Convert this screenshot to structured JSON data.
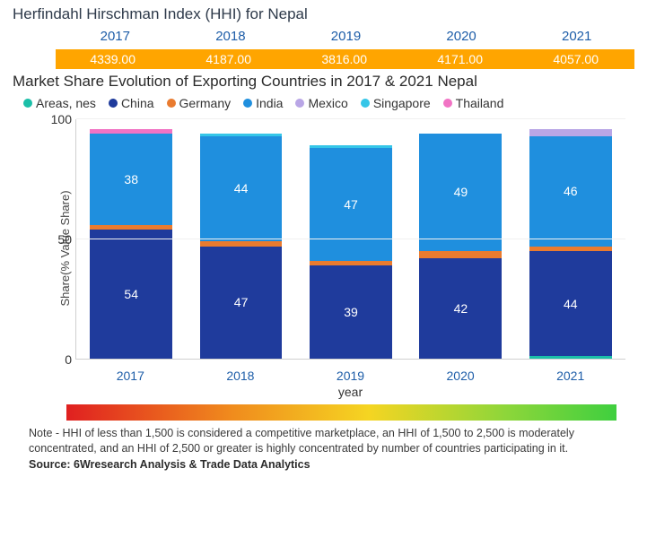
{
  "hhi": {
    "title": "Herfindahl Hirschman Index (HHI) for Nepal",
    "years": [
      "2017",
      "2018",
      "2019",
      "2020",
      "2021"
    ],
    "values": [
      "4339.00",
      "4187.00",
      "3816.00",
      "4171.00",
      "4057.00"
    ],
    "bar_color": "#ffa500",
    "year_color": "#1d5da8"
  },
  "marketShare": {
    "title": "Market Share Evolution of Exporting Countries in 2017 & 2021 Nepal",
    "legend": [
      {
        "label": "Areas, nes",
        "color": "#1bbfa8"
      },
      {
        "label": "China",
        "color": "#1f3b9c"
      },
      {
        "label": "Germany",
        "color": "#e97b2f"
      },
      {
        "label": "India",
        "color": "#1f8fde"
      },
      {
        "label": "Mexico",
        "color": "#b9a6e6"
      },
      {
        "label": "Singapore",
        "color": "#35c6e8"
      },
      {
        "label": "Thailand",
        "color": "#f173c4"
      }
    ],
    "ylabel": "Share(% Value Share)",
    "ylim": [
      0,
      100
    ],
    "yticks": [
      0,
      50,
      100
    ],
    "xlabel": "year",
    "categories": [
      "2017",
      "2018",
      "2019",
      "2020",
      "2021"
    ],
    "stacks": [
      [
        {
          "name": "China",
          "value": 54,
          "color": "#1f3b9c",
          "label": "54"
        },
        {
          "name": "Germany",
          "value": 2,
          "color": "#e97b2f",
          "label": ""
        },
        {
          "name": "India",
          "value": 38,
          "color": "#1f8fde",
          "label": "38"
        },
        {
          "name": "Thailand",
          "value": 2,
          "color": "#f173c4",
          "label": ""
        }
      ],
      [
        {
          "name": "China",
          "value": 47,
          "color": "#1f3b9c",
          "label": "47"
        },
        {
          "name": "Germany",
          "value": 2,
          "color": "#e97b2f",
          "label": ""
        },
        {
          "name": "India",
          "value": 44,
          "color": "#1f8fde",
          "label": "44"
        },
        {
          "name": "Singapore",
          "value": 1,
          "color": "#35c6e8",
          "label": ""
        }
      ],
      [
        {
          "name": "China",
          "value": 39,
          "color": "#1f3b9c",
          "label": "39"
        },
        {
          "name": "Germany",
          "value": 2,
          "color": "#e97b2f",
          "label": ""
        },
        {
          "name": "India",
          "value": 47,
          "color": "#1f8fde",
          "label": "47"
        },
        {
          "name": "Singapore",
          "value": 1,
          "color": "#35c6e8",
          "label": ""
        }
      ],
      [
        {
          "name": "China",
          "value": 42,
          "color": "#1f3b9c",
          "label": "42"
        },
        {
          "name": "Germany",
          "value": 3,
          "color": "#e97b2f",
          "label": ""
        },
        {
          "name": "India",
          "value": 49,
          "color": "#1f8fde",
          "label": "49"
        }
      ],
      [
        {
          "name": "Areas, nes",
          "value": 1,
          "color": "#1bbfa8",
          "label": ""
        },
        {
          "name": "China",
          "value": 44,
          "color": "#1f3b9c",
          "label": "44"
        },
        {
          "name": "Germany",
          "value": 2,
          "color": "#e97b2f",
          "label": ""
        },
        {
          "name": "India",
          "value": 46,
          "color": "#1f8fde",
          "label": "46"
        },
        {
          "name": "Mexico",
          "value": 3,
          "color": "#b9a6e6",
          "label": ""
        }
      ]
    ],
    "background_color": "#ffffff",
    "grid_color": "#f0f0f0",
    "bar_width_pct": 15
  },
  "gradient": {
    "stops": [
      "#e02020",
      "#f08b1d",
      "#f5d522",
      "#8dd63a",
      "#3fcf3f"
    ]
  },
  "note": "Note - HHI of less than 1,500 is considered a competitive marketplace, an HHI of 1,500 to 2,500 is moderately concentrated, and an HHI of 2,500 or greater is highly concentrated by number of countries participating in it.",
  "source": "Source: 6Wresearch Analysis & Trade Data Analytics"
}
